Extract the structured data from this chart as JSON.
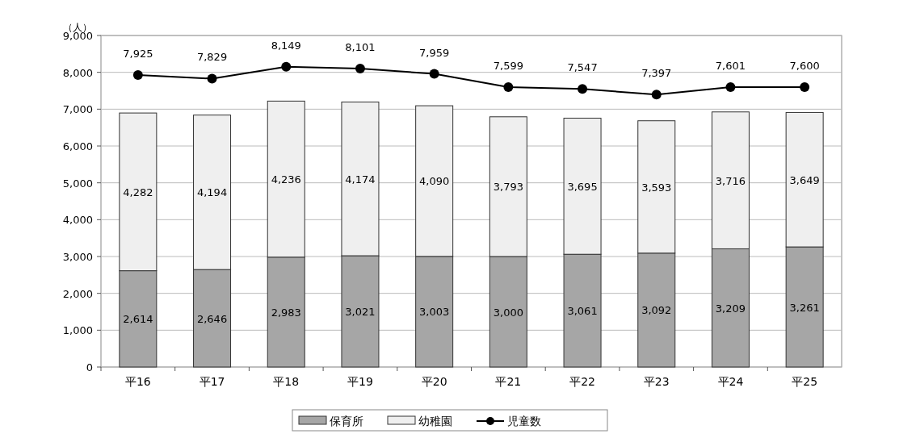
{
  "chart_data": {
    "type": "bar",
    "stacked": true,
    "ylabel": "（人）",
    "categories": [
      "平16",
      "平17",
      "平18",
      "平19",
      "平20",
      "平21",
      "平22",
      "平23",
      "平24",
      "平25"
    ],
    "series": [
      {
        "name": "保育所",
        "color": "#a6a6a6",
        "values": [
          2614,
          2646,
          2983,
          3021,
          3003,
          3000,
          3061,
          3092,
          3209,
          3261
        ],
        "value_labels": [
          "2,614",
          "2,646",
          "2,983",
          "3,021",
          "3,003",
          "3,000",
          "3,061",
          "3,092",
          "3,209",
          "3,261"
        ]
      },
      {
        "name": "幼稚園",
        "color": "#efefef",
        "values": [
          4282,
          4194,
          4236,
          4174,
          4090,
          3793,
          3695,
          3593,
          3716,
          3649
        ],
        "value_labels": [
          "4,282",
          "4,194",
          "4,236",
          "4,174",
          "4,090",
          "3,793",
          "3,695",
          "3,593",
          "3,716",
          "3,649"
        ]
      },
      {
        "name": "児童数",
        "type": "line",
        "color": "#000000",
        "marker": "circle",
        "values": [
          7925,
          7829,
          8149,
          8101,
          7959,
          7599,
          7547,
          7397,
          7601,
          7600
        ],
        "value_labels": [
          "7,925",
          "7,829",
          "8,149",
          "8,101",
          "7,959",
          "7,599",
          "7,547",
          "7,397",
          "7,601",
          "7,600"
        ]
      }
    ],
    "ylim": [
      0,
      9000
    ],
    "yticks": [
      0,
      {
        "value": 1000,
        "label": "1,000"
      },
      {
        "value": 2000,
        "label": "2,000"
      },
      {
        "value": 3000,
        "label": "3,000"
      },
      {
        "value": 4000,
        "label": "4,000"
      },
      {
        "value": 5000,
        "label": "5,000"
      },
      {
        "value": 6000,
        "label": "6,000"
      },
      {
        "value": 7000,
        "label": "7,000"
      },
      {
        "value": 8000,
        "label": "8,000"
      },
      {
        "value": 9000,
        "label": "9,000"
      }
    ],
    "grid": "y",
    "legend": "bottom"
  }
}
